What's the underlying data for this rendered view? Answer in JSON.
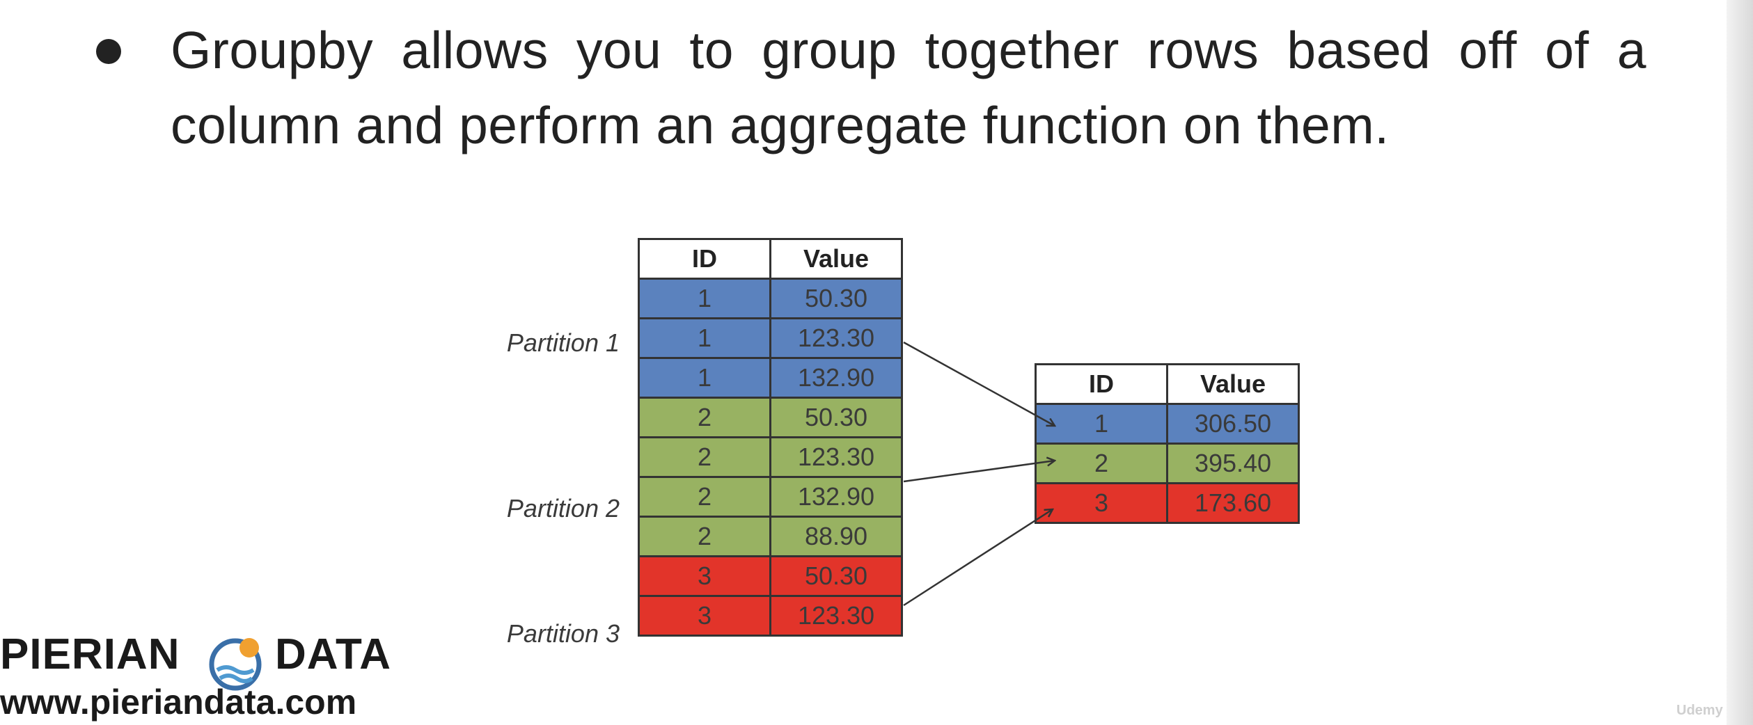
{
  "slide": {
    "bullet_line1": "Groupby allows you to group together rows based off of a",
    "bullet_line2": "column and perform an aggregate function on them."
  },
  "diagram": {
    "headers": {
      "id": "ID",
      "value": "Value"
    },
    "source_rows": [
      {
        "id": "1",
        "value": "50.30",
        "color": "#5b82be"
      },
      {
        "id": "1",
        "value": "123.30",
        "color": "#5b82be"
      },
      {
        "id": "1",
        "value": "132.90",
        "color": "#5b82be"
      },
      {
        "id": "2",
        "value": "50.30",
        "color": "#98b262"
      },
      {
        "id": "2",
        "value": "123.30",
        "color": "#98b262"
      },
      {
        "id": "2",
        "value": "132.90",
        "color": "#98b262"
      },
      {
        "id": "2",
        "value": "88.90",
        "color": "#98b262"
      },
      {
        "id": "3",
        "value": "50.30",
        "color": "#e2342a"
      },
      {
        "id": "3",
        "value": "123.30",
        "color": "#e2342a"
      }
    ],
    "result_rows": [
      {
        "id": "1",
        "value": "306.50",
        "color": "#5b82be"
      },
      {
        "id": "2",
        "value": "395.40",
        "color": "#98b262"
      },
      {
        "id": "3",
        "value": "173.60",
        "color": "#e2342a"
      }
    ],
    "partitions": [
      "Partition 1",
      "Partition 2",
      "Partition 3"
    ]
  },
  "logo": {
    "word_left": "PIERIAN",
    "word_right": "DATA",
    "url": "www.pieriandata.com"
  },
  "watermark": "Udemy"
}
